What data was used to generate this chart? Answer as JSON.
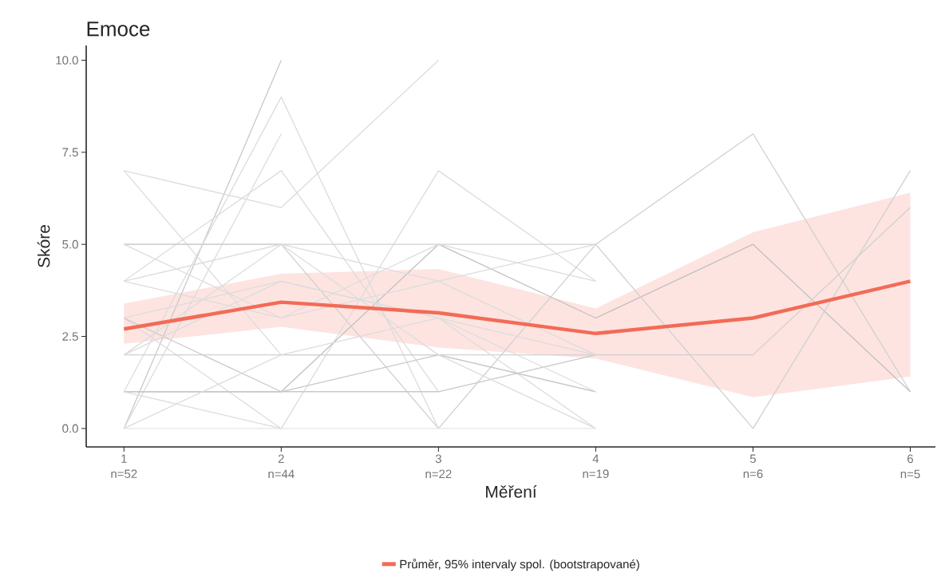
{
  "chart_data": {
    "type": "line",
    "title": "Emoce",
    "xlabel": "Měření",
    "ylabel": "Skóre",
    "categories": [
      "1\nn=52",
      "2\nn=44",
      "3\nn=22",
      "4\nn=19",
      "5\nn=6",
      "6\nn=5"
    ],
    "ylim": [
      -0.5,
      10.4
    ],
    "yticks": [
      {
        "value": 0,
        "label": "0.0"
      },
      {
        "value": 2.5,
        "label": "2.5"
      },
      {
        "value": 5,
        "label": "5.0"
      },
      {
        "value": 7.5,
        "label": "7.5"
      },
      {
        "value": 10,
        "label": "10.0"
      }
    ],
    "grid": false,
    "legend": "bottom",
    "marker": "none",
    "line_style": "solid",
    "series": [
      {
        "color": "#c8c8c8",
        "values": [
          0,
          10,
          null,
          null,
          null,
          null
        ]
      },
      {
        "color": "#dcdcdc",
        "values": [
          1,
          9,
          0,
          null,
          null,
          null
        ]
      },
      {
        "color": "#dcdcdc",
        "values": [
          0,
          8,
          null,
          null,
          null,
          null
        ]
      },
      {
        "color": "#dcdcdc",
        "values": [
          7,
          6,
          10,
          null,
          null,
          null
        ]
      },
      {
        "color": "#dcdcdc",
        "values": [
          4,
          7,
          1,
          null,
          null,
          null
        ]
      },
      {
        "color": "#dcdcdc",
        "values": [
          7,
          2,
          2,
          1,
          null,
          null
        ]
      },
      {
        "color": "#dcdcdc",
        "values": [
          3,
          0,
          7,
          4,
          null,
          null
        ]
      },
      {
        "color": "#d0d0d0",
        "values": [
          5,
          5,
          5,
          5,
          8,
          1
        ]
      },
      {
        "color": "#c0c0c0",
        "values": [
          1,
          1,
          5,
          3,
          5,
          1
        ]
      },
      {
        "color": "#d0d0d0",
        "values": [
          5,
          5,
          0,
          5,
          0,
          7
        ]
      },
      {
        "color": "#d0d0d0",
        "values": [
          2,
          2,
          2,
          2,
          2,
          6
        ]
      },
      {
        "color": "#c8c8c8",
        "values": [
          3,
          1,
          1,
          2,
          null,
          null
        ]
      },
      {
        "color": "#dcdcdc",
        "values": [
          2,
          4,
          3,
          0,
          null,
          null
        ]
      },
      {
        "color": "#dcdcdc",
        "values": [
          4,
          5,
          4,
          2,
          null,
          null
        ]
      },
      {
        "color": "#c8c8c8",
        "values": [
          1,
          1,
          2,
          1,
          null,
          null
        ]
      },
      {
        "color": "#dcdcdc",
        "values": [
          0,
          2,
          3,
          1,
          null,
          null
        ]
      },
      {
        "color": "#dcdcdc",
        "values": [
          2,
          5,
          2,
          0,
          null,
          null
        ]
      },
      {
        "color": "#dcdcdc",
        "values": [
          3,
          4,
          3,
          2,
          null,
          null
        ]
      },
      {
        "color": "#e6e6e6",
        "values": [
          0,
          0,
          0,
          0,
          null,
          null
        ]
      },
      {
        "color": "#dcdcdc",
        "values": [
          5,
          3,
          4,
          5,
          null,
          null
        ]
      },
      {
        "color": "#dcdcdc",
        "values": [
          1,
          0,
          null,
          null,
          null,
          null
        ]
      },
      {
        "color": "#dcdcdc",
        "values": [
          4,
          3,
          5,
          4,
          null,
          null
        ]
      },
      {
        "name": "Průměr, 95% intervaly spol. (bootstrapované)",
        "color": "#f26b56",
        "values": [
          2.7,
          3.43,
          3.14,
          2.58,
          3.0,
          4.0
        ],
        "lower": [
          2.3,
          2.76,
          2.2,
          1.9,
          0.85,
          1.41
        ],
        "upper": [
          3.39,
          4.2,
          4.33,
          3.26,
          5.33,
          6.4
        ]
      }
    ]
  }
}
